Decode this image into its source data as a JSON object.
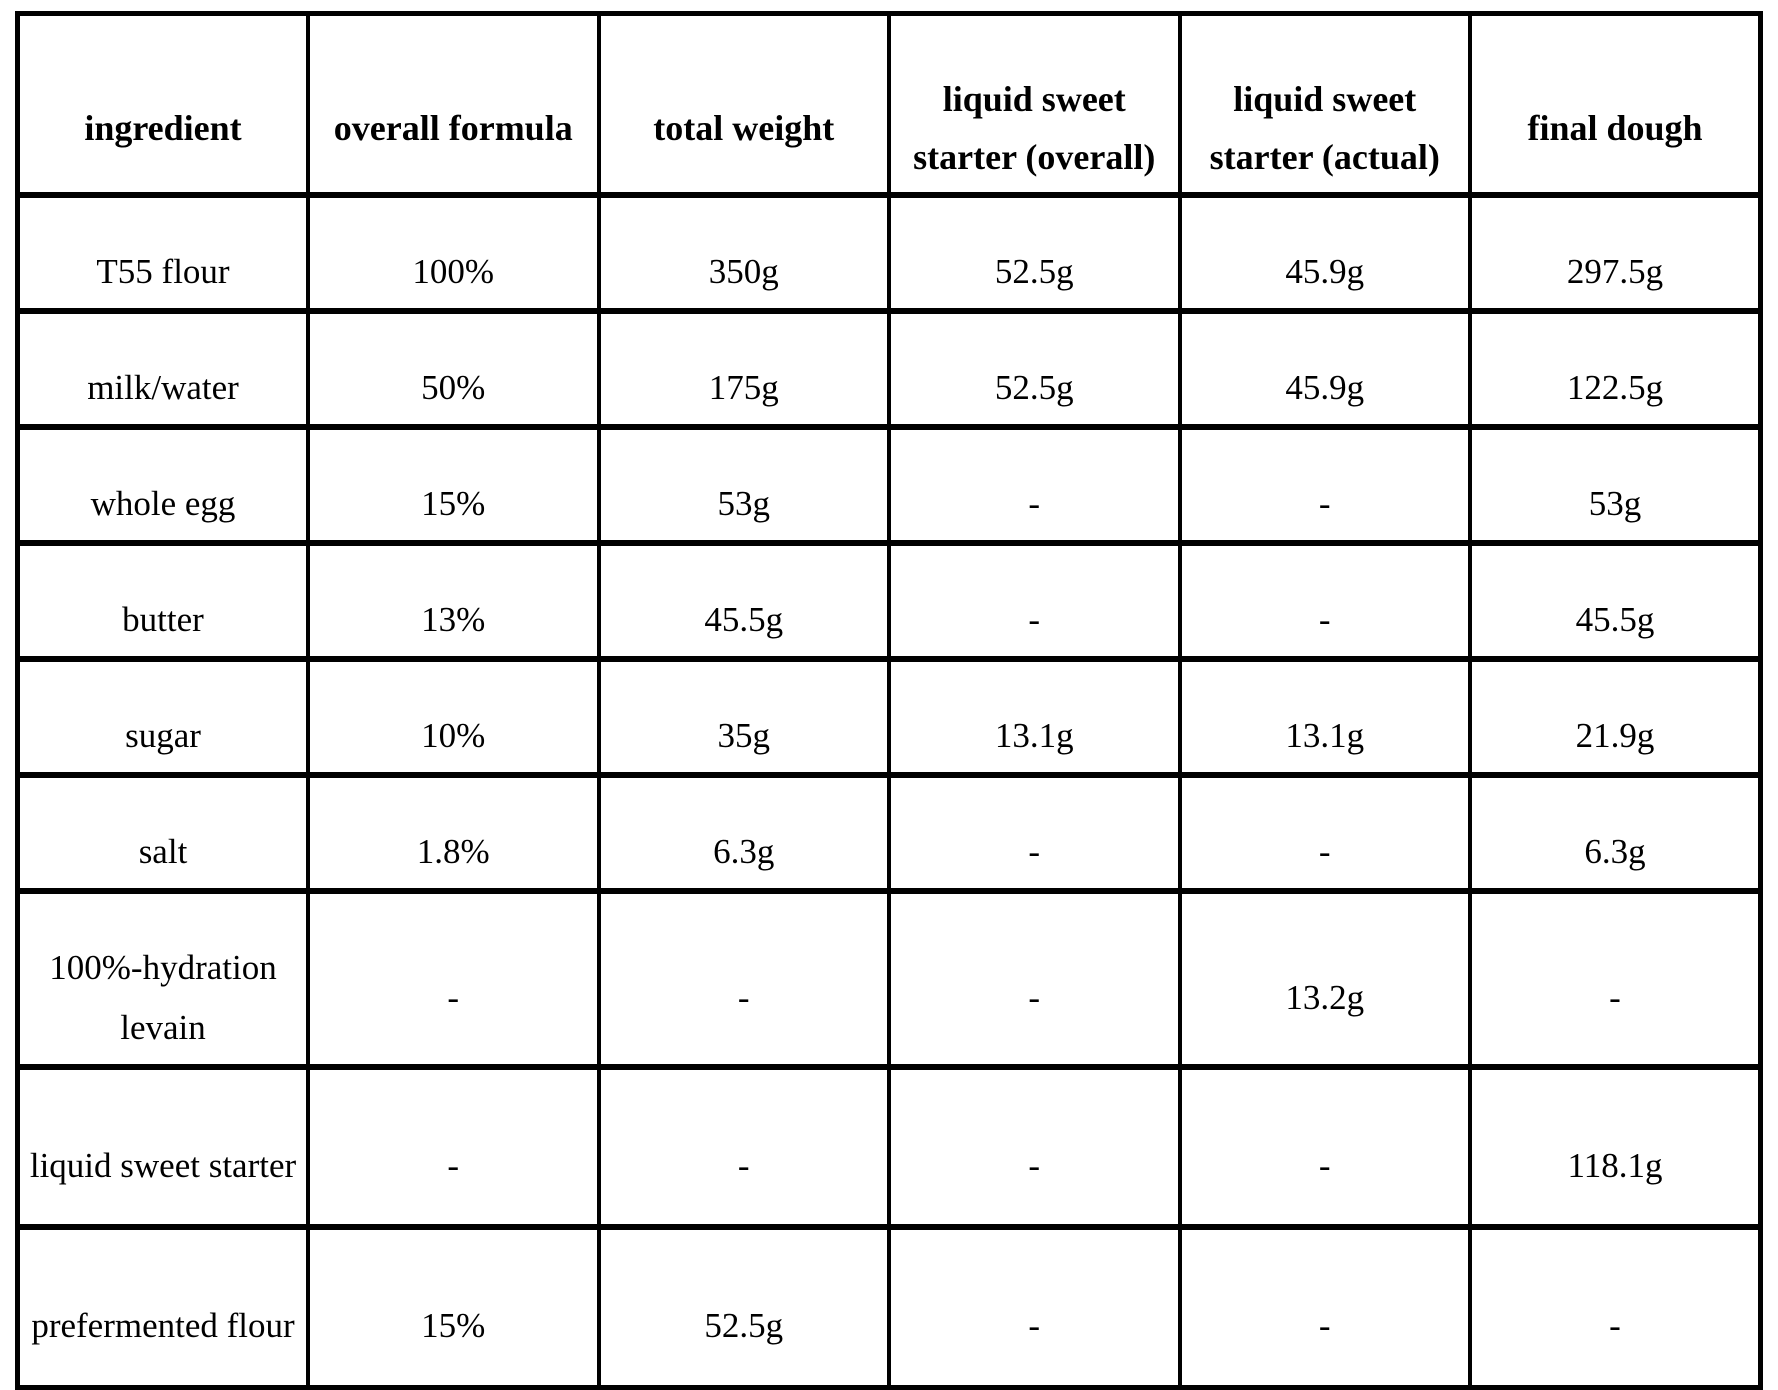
{
  "chart_data": {
    "type": "table",
    "title": "",
    "columns": [
      "ingredient",
      "overall formula",
      "total weight",
      "liquid sweet starter (overall)",
      "liquid sweet starter (actual)",
      "final dough"
    ],
    "rows": [
      [
        "T55 flour",
        "100%",
        "350g",
        "52.5g",
        "45.9g",
        "297.5g"
      ],
      [
        "milk/water",
        "50%",
        "175g",
        "52.5g",
        "45.9g",
        "122.5g"
      ],
      [
        "whole egg",
        "15%",
        "53g",
        "-",
        "-",
        "53g"
      ],
      [
        "butter",
        "13%",
        "45.5g",
        "-",
        "-",
        "45.5g"
      ],
      [
        "sugar",
        "10%",
        "35g",
        "13.1g",
        "13.1g",
        "21.9g"
      ],
      [
        "salt",
        "1.8%",
        "6.3g",
        "-",
        "-",
        "6.3g"
      ],
      [
        "100%-hydration levain",
        "-",
        "-",
        "-",
        "13.2g",
        "-"
      ],
      [
        "liquid sweet starter",
        "-",
        "-",
        "-",
        "-",
        "118.1g"
      ],
      [
        "prefermented flour",
        "15%",
        "52.5g",
        "-",
        "-",
        "-"
      ]
    ],
    "layout": {
      "grid": "full-borders",
      "header_style": "bold",
      "cell_alignment": "center",
      "empty_value_marker": "-"
    }
  },
  "colors": {
    "background": "#ffffff",
    "text": "#000000",
    "border": "#000000"
  }
}
